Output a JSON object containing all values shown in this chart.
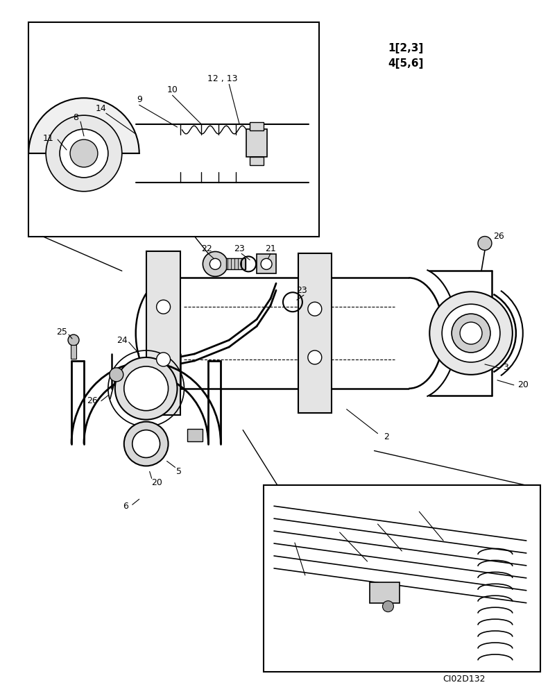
{
  "background_color": "#ffffff",
  "line_color": "#000000",
  "figure_code": "CI02D132",
  "top_right_label_1": "1[2,3]",
  "top_right_label_2": "4[5,6]"
}
